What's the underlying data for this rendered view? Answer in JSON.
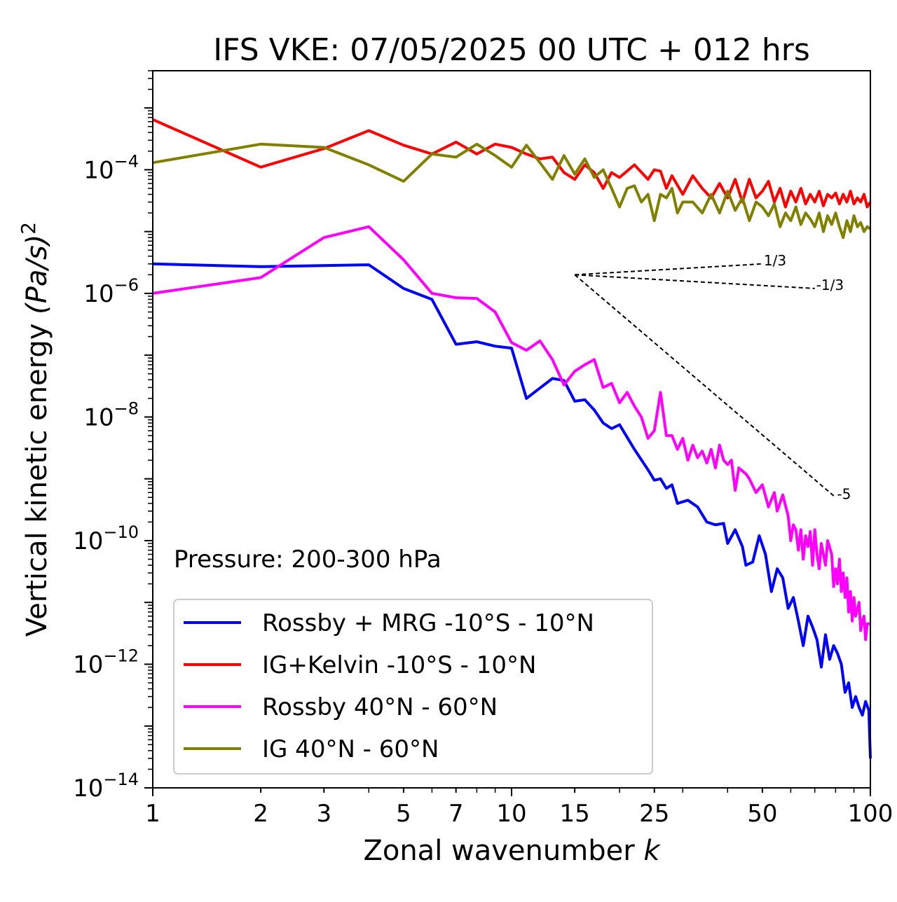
{
  "chart_data": {
    "type": "line",
    "title": "IFS VKE: 07/05/2025 00 UTC + 012 hrs",
    "xlabel": "Zonal wavenumber ",
    "xlabel_italic": "k",
    "ylabel": "Vertical kinetic energy ",
    "ylabel_math": "(Pa/s)",
    "ylabel_exp": "2",
    "xscale": "log",
    "yscale": "log",
    "xlim": [
      1,
      100
    ],
    "ylim": [
      1e-14,
      0.004
    ],
    "xticks": [
      {
        "value": 1,
        "label": "1"
      },
      {
        "value": 2,
        "label": "2"
      },
      {
        "value": 3,
        "label": "3"
      },
      {
        "value": 5,
        "label": "5"
      },
      {
        "value": 7,
        "label": "7"
      },
      {
        "value": 10,
        "label": "10"
      },
      {
        "value": 15,
        "label": "15"
      },
      {
        "value": 25,
        "label": "25"
      },
      {
        "value": 50,
        "label": "50"
      },
      {
        "value": 100,
        "label": "100"
      }
    ],
    "yticks": [
      {
        "value": 0.0001,
        "base": "10",
        "exp": "−4"
      },
      {
        "value": 1e-06,
        "base": "10",
        "exp": "−6"
      },
      {
        "value": 1e-08,
        "base": "10",
        "exp": "−8"
      },
      {
        "value": 1e-10,
        "base": "10",
        "exp": "−10"
      },
      {
        "value": 1e-12,
        "base": "10",
        "exp": "−12"
      },
      {
        "value": 1e-14,
        "base": "10",
        "exp": "−14"
      }
    ],
    "annotation": "Pressure: 200-300 hPa",
    "legend_position": "lower-left",
    "grid": false,
    "slope_lines": [
      {
        "label": "1/3",
        "from": [
          15,
          2e-06
        ],
        "to": [
          50,
          3e-06
        ]
      },
      {
        "label": "-1/3",
        "from": [
          15,
          2e-06
        ],
        "to": [
          70,
          1.2e-06
        ]
      },
      {
        "label": "-5",
        "from": [
          15,
          2e-06
        ],
        "to": [
          80,
          5e-10
        ]
      }
    ],
    "series": [
      {
        "name": "Rossby + MRG -10°S - 10°N",
        "color": "#0000ff",
        "points": [
          [
            1,
            3e-06
          ],
          [
            2,
            2.7e-06
          ],
          [
            4,
            2.9e-06
          ],
          [
            5,
            1.2e-06
          ],
          [
            6,
            8e-07
          ],
          [
            7,
            1.5e-07
          ],
          [
            8,
            1.65e-07
          ],
          [
            9,
            1.4e-07
          ],
          [
            10,
            1.3e-07
          ],
          [
            11,
            2e-08
          ],
          [
            13,
            4.2e-08
          ],
          [
            14,
            3.9e-08
          ],
          [
            15,
            1.8e-08
          ],
          [
            16,
            1.9e-08
          ],
          [
            17,
            1.3e-08
          ],
          [
            18,
            8e-09
          ],
          [
            19,
            6.5e-09
          ],
          [
            20,
            7.5e-09
          ],
          [
            22,
            3e-09
          ],
          [
            24,
            1.4e-09
          ],
          [
            25,
            9.5e-10
          ],
          [
            26,
            1e-09
          ],
          [
            27,
            7e-10
          ],
          [
            28,
            8e-10
          ],
          [
            29,
            4e-10
          ],
          [
            31,
            4.5e-10
          ],
          [
            33,
            3.5e-10
          ],
          [
            35,
            2e-10
          ],
          [
            37,
            1.8e-10
          ],
          [
            39,
            1.9e-10
          ],
          [
            40,
            9e-11
          ],
          [
            42,
            1.5e-10
          ],
          [
            44,
            8e-11
          ],
          [
            45,
            4e-11
          ],
          [
            47,
            4.5e-11
          ],
          [
            49,
            1.2e-10
          ],
          [
            51,
            6e-11
          ],
          [
            53,
            1.5e-11
          ],
          [
            55,
            3.5e-11
          ],
          [
            57,
            2.5e-11
          ],
          [
            59,
            8e-12
          ],
          [
            61,
            1.2e-11
          ],
          [
            63,
            5e-12
          ],
          [
            65,
            2e-12
          ],
          [
            67,
            6e-12
          ],
          [
            69,
            4e-12
          ],
          [
            71,
            2.5e-12
          ],
          [
            73,
            9e-13
          ],
          [
            75,
            3e-12
          ],
          [
            77,
            1.2e-12
          ],
          [
            79,
            2e-12
          ],
          [
            81,
            1.5e-12
          ],
          [
            83,
            1e-12
          ],
          [
            85,
            3.5e-13
          ],
          [
            87,
            5e-13
          ],
          [
            89,
            2e-13
          ],
          [
            91,
            3e-13
          ],
          [
            93,
            2e-13
          ],
          [
            95,
            1.5e-13
          ],
          [
            97,
            2.5e-13
          ],
          [
            99,
            1.8e-13
          ],
          [
            100,
            3e-14
          ]
        ]
      },
      {
        "name": "IG+Kelvin -10°S - 10°N",
        "color": "#ff0000",
        "points": [
          [
            1,
            0.00065
          ],
          [
            2,
            0.00011
          ],
          [
            3,
            0.00022
          ],
          [
            4,
            0.00043
          ],
          [
            5,
            0.00025
          ],
          [
            6,
            0.00018
          ],
          [
            7,
            0.00028
          ],
          [
            8,
            0.00018
          ],
          [
            9,
            0.00026
          ],
          [
            10,
            0.00023
          ],
          [
            11,
            0.00018
          ],
          [
            12,
            0.00015
          ],
          [
            13,
            0.00016
          ],
          [
            14,
            9e-05
          ],
          [
            15,
            7e-05
          ],
          [
            16,
            0.00012
          ],
          [
            17,
            9e-05
          ],
          [
            18,
            5e-05
          ],
          [
            19,
            9e-05
          ],
          [
            20,
            7.5e-05
          ],
          [
            22,
            0.00012
          ],
          [
            24,
            7e-05
          ],
          [
            25,
            0.0001
          ],
          [
            26,
            9.5e-05
          ],
          [
            27,
            5e-05
          ],
          [
            28,
            8e-05
          ],
          [
            30,
            4e-05
          ],
          [
            32,
            8e-05
          ],
          [
            34,
            5e-05
          ],
          [
            36,
            3.5e-05
          ],
          [
            38,
            6e-05
          ],
          [
            40,
            3.5e-05
          ],
          [
            42,
            7e-05
          ],
          [
            44,
            3e-05
          ],
          [
            46,
            7e-05
          ],
          [
            48,
            3.5e-05
          ],
          [
            50,
            4.5e-05
          ],
          [
            52,
            6.5e-05
          ],
          [
            54,
            3e-05
          ],
          [
            56,
            5e-05
          ],
          [
            58,
            2.5e-05
          ],
          [
            60,
            4.5e-05
          ],
          [
            62,
            3e-05
          ],
          [
            64,
            5e-05
          ],
          [
            66,
            2.8e-05
          ],
          [
            68,
            4e-05
          ],
          [
            70,
            3e-05
          ],
          [
            72,
            4.5e-05
          ],
          [
            74,
            2.6e-05
          ],
          [
            76,
            4e-05
          ],
          [
            78,
            3.5e-05
          ],
          [
            80,
            4.2e-05
          ],
          [
            82,
            2.8e-05
          ],
          [
            84,
            4e-05
          ],
          [
            86,
            3e-05
          ],
          [
            88,
            4.5e-05
          ],
          [
            90,
            2.8e-05
          ],
          [
            92,
            3.5e-05
          ],
          [
            94,
            3e-05
          ],
          [
            96,
            4e-05
          ],
          [
            98,
            2.5e-05
          ],
          [
            100,
            3e-05
          ]
        ]
      },
      {
        "name": "Rossby 40°N - 60°N",
        "color": "#ff00ff",
        "points": [
          [
            1,
            1e-06
          ],
          [
            2,
            1.8e-06
          ],
          [
            3,
            8e-06
          ],
          [
            4,
            1.2e-05
          ],
          [
            5,
            3.5e-06
          ],
          [
            6,
            1e-06
          ],
          [
            7,
            8.5e-07
          ],
          [
            8,
            8.3e-07
          ],
          [
            9,
            5e-07
          ],
          [
            10,
            1.6e-07
          ],
          [
            11,
            1.2e-07
          ],
          [
            12,
            1.7e-07
          ],
          [
            13,
            8.5e-08
          ],
          [
            14,
            3.3e-08
          ],
          [
            15,
            5.5e-08
          ],
          [
            16,
            7e-08
          ],
          [
            17,
            8.5e-08
          ],
          [
            18,
            3e-08
          ],
          [
            19,
            3.5e-08
          ],
          [
            20,
            1.7e-08
          ],
          [
            21,
            2.5e-08
          ],
          [
            22,
            1.5e-08
          ],
          [
            23,
            1e-08
          ],
          [
            24,
            4.5e-09
          ],
          [
            25,
            6e-09
          ],
          [
            26,
            2.5e-08
          ],
          [
            27,
            5e-09
          ],
          [
            28,
            5e-09
          ],
          [
            29,
            3e-09
          ],
          [
            30,
            4.5e-09
          ],
          [
            31,
            2e-09
          ],
          [
            32,
            3.5e-09
          ],
          [
            33,
            2.2e-09
          ],
          [
            34,
            2.8e-09
          ],
          [
            35,
            1.8e-09
          ],
          [
            36,
            3e-09
          ],
          [
            37,
            1.5e-09
          ],
          [
            38,
            3.5e-09
          ],
          [
            39,
            2e-09
          ],
          [
            40,
            1.7e-09
          ],
          [
            41,
            2e-09
          ],
          [
            42,
            6.5e-10
          ],
          [
            43,
            1.5e-09
          ],
          [
            45,
            1.2e-09
          ],
          [
            46,
            1e-09
          ],
          [
            48,
            6e-10
          ],
          [
            50,
            8e-10
          ],
          [
            52,
            3.5e-10
          ],
          [
            54,
            6e-10
          ],
          [
            55,
            3e-10
          ],
          [
            57,
            5.5e-10
          ],
          [
            59,
            2.5e-10
          ],
          [
            60,
            1e-10
          ],
          [
            61,
            1.8e-10
          ],
          [
            62,
            1.5e-10
          ],
          [
            63,
            7e-11
          ],
          [
            64,
            1.5e-10
          ],
          [
            65,
            5e-11
          ],
          [
            66,
            1.2e-10
          ],
          [
            67,
            8e-11
          ],
          [
            68,
            1.4e-10
          ],
          [
            69,
            4e-11
          ],
          [
            70,
            1.5e-10
          ],
          [
            71,
            6e-11
          ],
          [
            72,
            3.5e-11
          ],
          [
            73,
            9e-11
          ],
          [
            74,
            6e-11
          ],
          [
            75,
            4e-11
          ],
          [
            76,
            1e-10
          ],
          [
            78,
            6e-11
          ],
          [
            79,
            1.8e-11
          ],
          [
            80,
            3.5e-11
          ],
          [
            81,
            2e-11
          ],
          [
            82,
            5e-11
          ],
          [
            83,
            1.5e-11
          ],
          [
            84,
            3e-11
          ],
          [
            85,
            1.2e-11
          ],
          [
            86,
            2.5e-11
          ],
          [
            87,
            7e-12
          ],
          [
            88,
            1.5e-11
          ],
          [
            89,
            5e-12
          ],
          [
            90,
            1.2e-11
          ],
          [
            91,
            6e-12
          ],
          [
            93,
            1e-11
          ],
          [
            94,
            3.5e-12
          ],
          [
            95,
            5e-12
          ],
          [
            96,
            6e-12
          ],
          [
            97,
            2.5e-12
          ],
          [
            98,
            4.5e-12
          ],
          [
            100,
            4.5e-12
          ]
        ]
      },
      {
        "name": "IG 40°N - 60°N",
        "color": "#808000",
        "points": [
          [
            1,
            0.00013
          ],
          [
            2,
            0.00026
          ],
          [
            3,
            0.00023
          ],
          [
            4,
            0.00012
          ],
          [
            5,
            6.5e-05
          ],
          [
            6,
            0.00018
          ],
          [
            7,
            0.00016
          ],
          [
            8,
            0.00026
          ],
          [
            9,
            0.00017
          ],
          [
            10,
            0.00011
          ],
          [
            11,
            0.00025
          ],
          [
            12,
            0.00013
          ],
          [
            13,
            7e-05
          ],
          [
            14,
            0.00017
          ],
          [
            15,
            8.5e-05
          ],
          [
            16,
            0.00015
          ],
          [
            17,
            7.5e-05
          ],
          [
            18,
            0.0001
          ],
          [
            19,
            5e-05
          ],
          [
            20,
            2.5e-05
          ],
          [
            21,
            5e-05
          ],
          [
            22,
            5.5e-05
          ],
          [
            23,
            3e-05
          ],
          [
            24,
            4e-05
          ],
          [
            25,
            1.5e-05
          ],
          [
            26,
            4e-05
          ],
          [
            27,
            3.5e-05
          ],
          [
            28,
            5e-05
          ],
          [
            29,
            2e-05
          ],
          [
            30,
            3e-05
          ],
          [
            32,
            3e-05
          ],
          [
            34,
            2e-05
          ],
          [
            36,
            4e-05
          ],
          [
            38,
            2e-05
          ],
          [
            40,
            4.5e-05
          ],
          [
            42,
            2.2e-05
          ],
          [
            44,
            3.5e-05
          ],
          [
            46,
            1.5e-05
          ],
          [
            48,
            3e-05
          ],
          [
            50,
            2.5e-05
          ],
          [
            52,
            1.8e-05
          ],
          [
            54,
            2.8e-05
          ],
          [
            56,
            1.2e-05
          ],
          [
            58,
            2e-05
          ],
          [
            60,
            1.5e-05
          ],
          [
            62,
            2.5e-05
          ],
          [
            64,
            1.3e-05
          ],
          [
            66,
            2e-05
          ],
          [
            68,
            1.6e-05
          ],
          [
            70,
            1.2e-05
          ],
          [
            72,
            2e-05
          ],
          [
            74,
            1e-05
          ],
          [
            76,
            1.8e-05
          ],
          [
            78,
            1.3e-05
          ],
          [
            80,
            2e-05
          ],
          [
            82,
            1.2e-05
          ],
          [
            84,
            8e-06
          ],
          [
            86,
            1.5e-05
          ],
          [
            88,
            1e-05
          ],
          [
            90,
            1.8e-05
          ],
          [
            92,
            1.2e-05
          ],
          [
            94,
            1.4e-05
          ],
          [
            96,
            1e-05
          ],
          [
            98,
            1.2e-05
          ],
          [
            100,
            1.1e-05
          ]
        ]
      }
    ]
  }
}
